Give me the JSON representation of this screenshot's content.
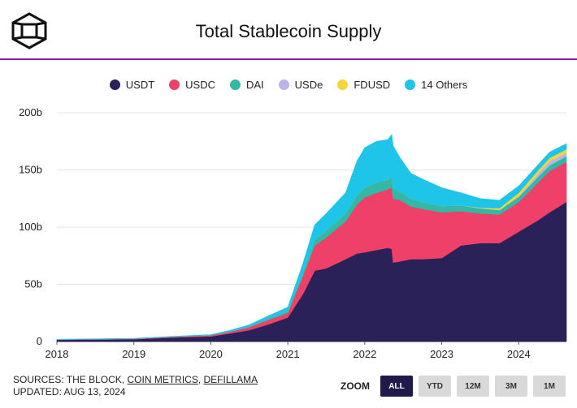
{
  "header": {
    "title": "Total Stablecoin Supply"
  },
  "footer": {
    "sources_prefix": "SOURCES: THE BLOCK, ",
    "source_link_1": "COIN METRICS",
    "source_sep": ", ",
    "source_link_2": "DEFILLAMA",
    "updated": "UPDATED: AUG 13, 2024"
  },
  "zoom": {
    "label": "ZOOM",
    "buttons": [
      "ALL",
      "YTD",
      "12M",
      "3M",
      "1M"
    ],
    "active": "ALL"
  },
  "colors": {
    "USDT": "#2a2158",
    "USDC": "#ee4068",
    "DAI": "#34b8a6",
    "USDe": "#bcb3e6",
    "FDUSD": "#f5d63a",
    "14 Others": "#1ec5e8",
    "accent_rule": "#8a1db8"
  },
  "chart_data": {
    "type": "area",
    "stacked": true,
    "title": "Total Stablecoin Supply",
    "xlabel": "",
    "ylabel": "",
    "x_ticks": [
      "2018",
      "2019",
      "2020",
      "2021",
      "2022",
      "2023",
      "2024"
    ],
    "y_ticks": [
      "0",
      "50b",
      "100b",
      "150b",
      "200b"
    ],
    "ylim": [
      0,
      200
    ],
    "xlim": [
      2018.0,
      2024.62
    ],
    "grid": "horizontal",
    "legend_position": "top",
    "x": [
      2018.0,
      2019.0,
      2019.5,
      2020.0,
      2020.25,
      2020.5,
      2020.75,
      2021.0,
      2021.2,
      2021.35,
      2021.5,
      2021.75,
      2021.9,
      2022.0,
      2022.15,
      2022.3,
      2022.35,
      2022.37,
      2022.45,
      2022.6,
      2022.75,
      2023.0,
      2023.25,
      2023.5,
      2023.75,
      2024.0,
      2024.25,
      2024.4,
      2024.62
    ],
    "series": [
      {
        "name": "USDT",
        "values": [
          1.5,
          2.0,
          3.5,
          4.5,
          7.0,
          10.0,
          15.0,
          21.0,
          42.0,
          62.0,
          64.0,
          72.0,
          77.0,
          78.0,
          80.0,
          82.0,
          81.0,
          69.0,
          70.0,
          72.0,
          72.0,
          73.0,
          84.0,
          86.0,
          86.0,
          96.0,
          106.0,
          113.0,
          122.0
        ]
      },
      {
        "name": "USDC",
        "values": [
          0.2,
          0.4,
          0.6,
          0.8,
          1.5,
          2.5,
          4.0,
          4.0,
          16.0,
          22.0,
          27.0,
          33.0,
          43.0,
          48.0,
          50.0,
          51.0,
          54.0,
          56.0,
          54.0,
          46.0,
          44.0,
          40.0,
          30.0,
          26.0,
          25.0,
          26.0,
          33.0,
          36.0,
          35.0
        ]
      },
      {
        "name": "DAI",
        "values": [
          0.1,
          0.1,
          0.1,
          0.2,
          0.3,
          0.6,
          1.0,
          1.5,
          3.0,
          5.0,
          6.0,
          7.0,
          8.0,
          8.5,
          9.0,
          8.5,
          9.0,
          9.0,
          7.5,
          7.0,
          6.0,
          5.5,
          5.0,
          4.5,
          4.0,
          4.5,
          5.0,
          5.0,
          5.0
        ]
      },
      {
        "name": "USDe",
        "values": [
          0,
          0,
          0,
          0,
          0,
          0,
          0,
          0,
          0,
          0,
          0,
          0,
          0,
          0,
          0,
          0,
          0,
          0,
          0,
          0,
          0,
          0,
          0,
          0,
          0,
          0.5,
          2.5,
          3.5,
          3.0
        ]
      },
      {
        "name": "FDUSD",
        "values": [
          0,
          0,
          0,
          0,
          0,
          0,
          0,
          0,
          0,
          0,
          0,
          0,
          0,
          0,
          0,
          0,
          0,
          0,
          0,
          0,
          0,
          0,
          0,
          0.5,
          1.5,
          3.0,
          3.0,
          3.0,
          3.0
        ]
      },
      {
        "name": "14 Others",
        "values": [
          0.2,
          0.3,
          0.3,
          0.5,
          1.0,
          1.5,
          2.5,
          3.5,
          8.0,
          13.0,
          15.0,
          18.0,
          30.0,
          35.0,
          36.0,
          35.0,
          37.0,
          37.0,
          30.0,
          22.0,
          20.0,
          16.0,
          11.0,
          8.0,
          7.0,
          6.0,
          5.0,
          5.0,
          5.0
        ]
      }
    ]
  }
}
